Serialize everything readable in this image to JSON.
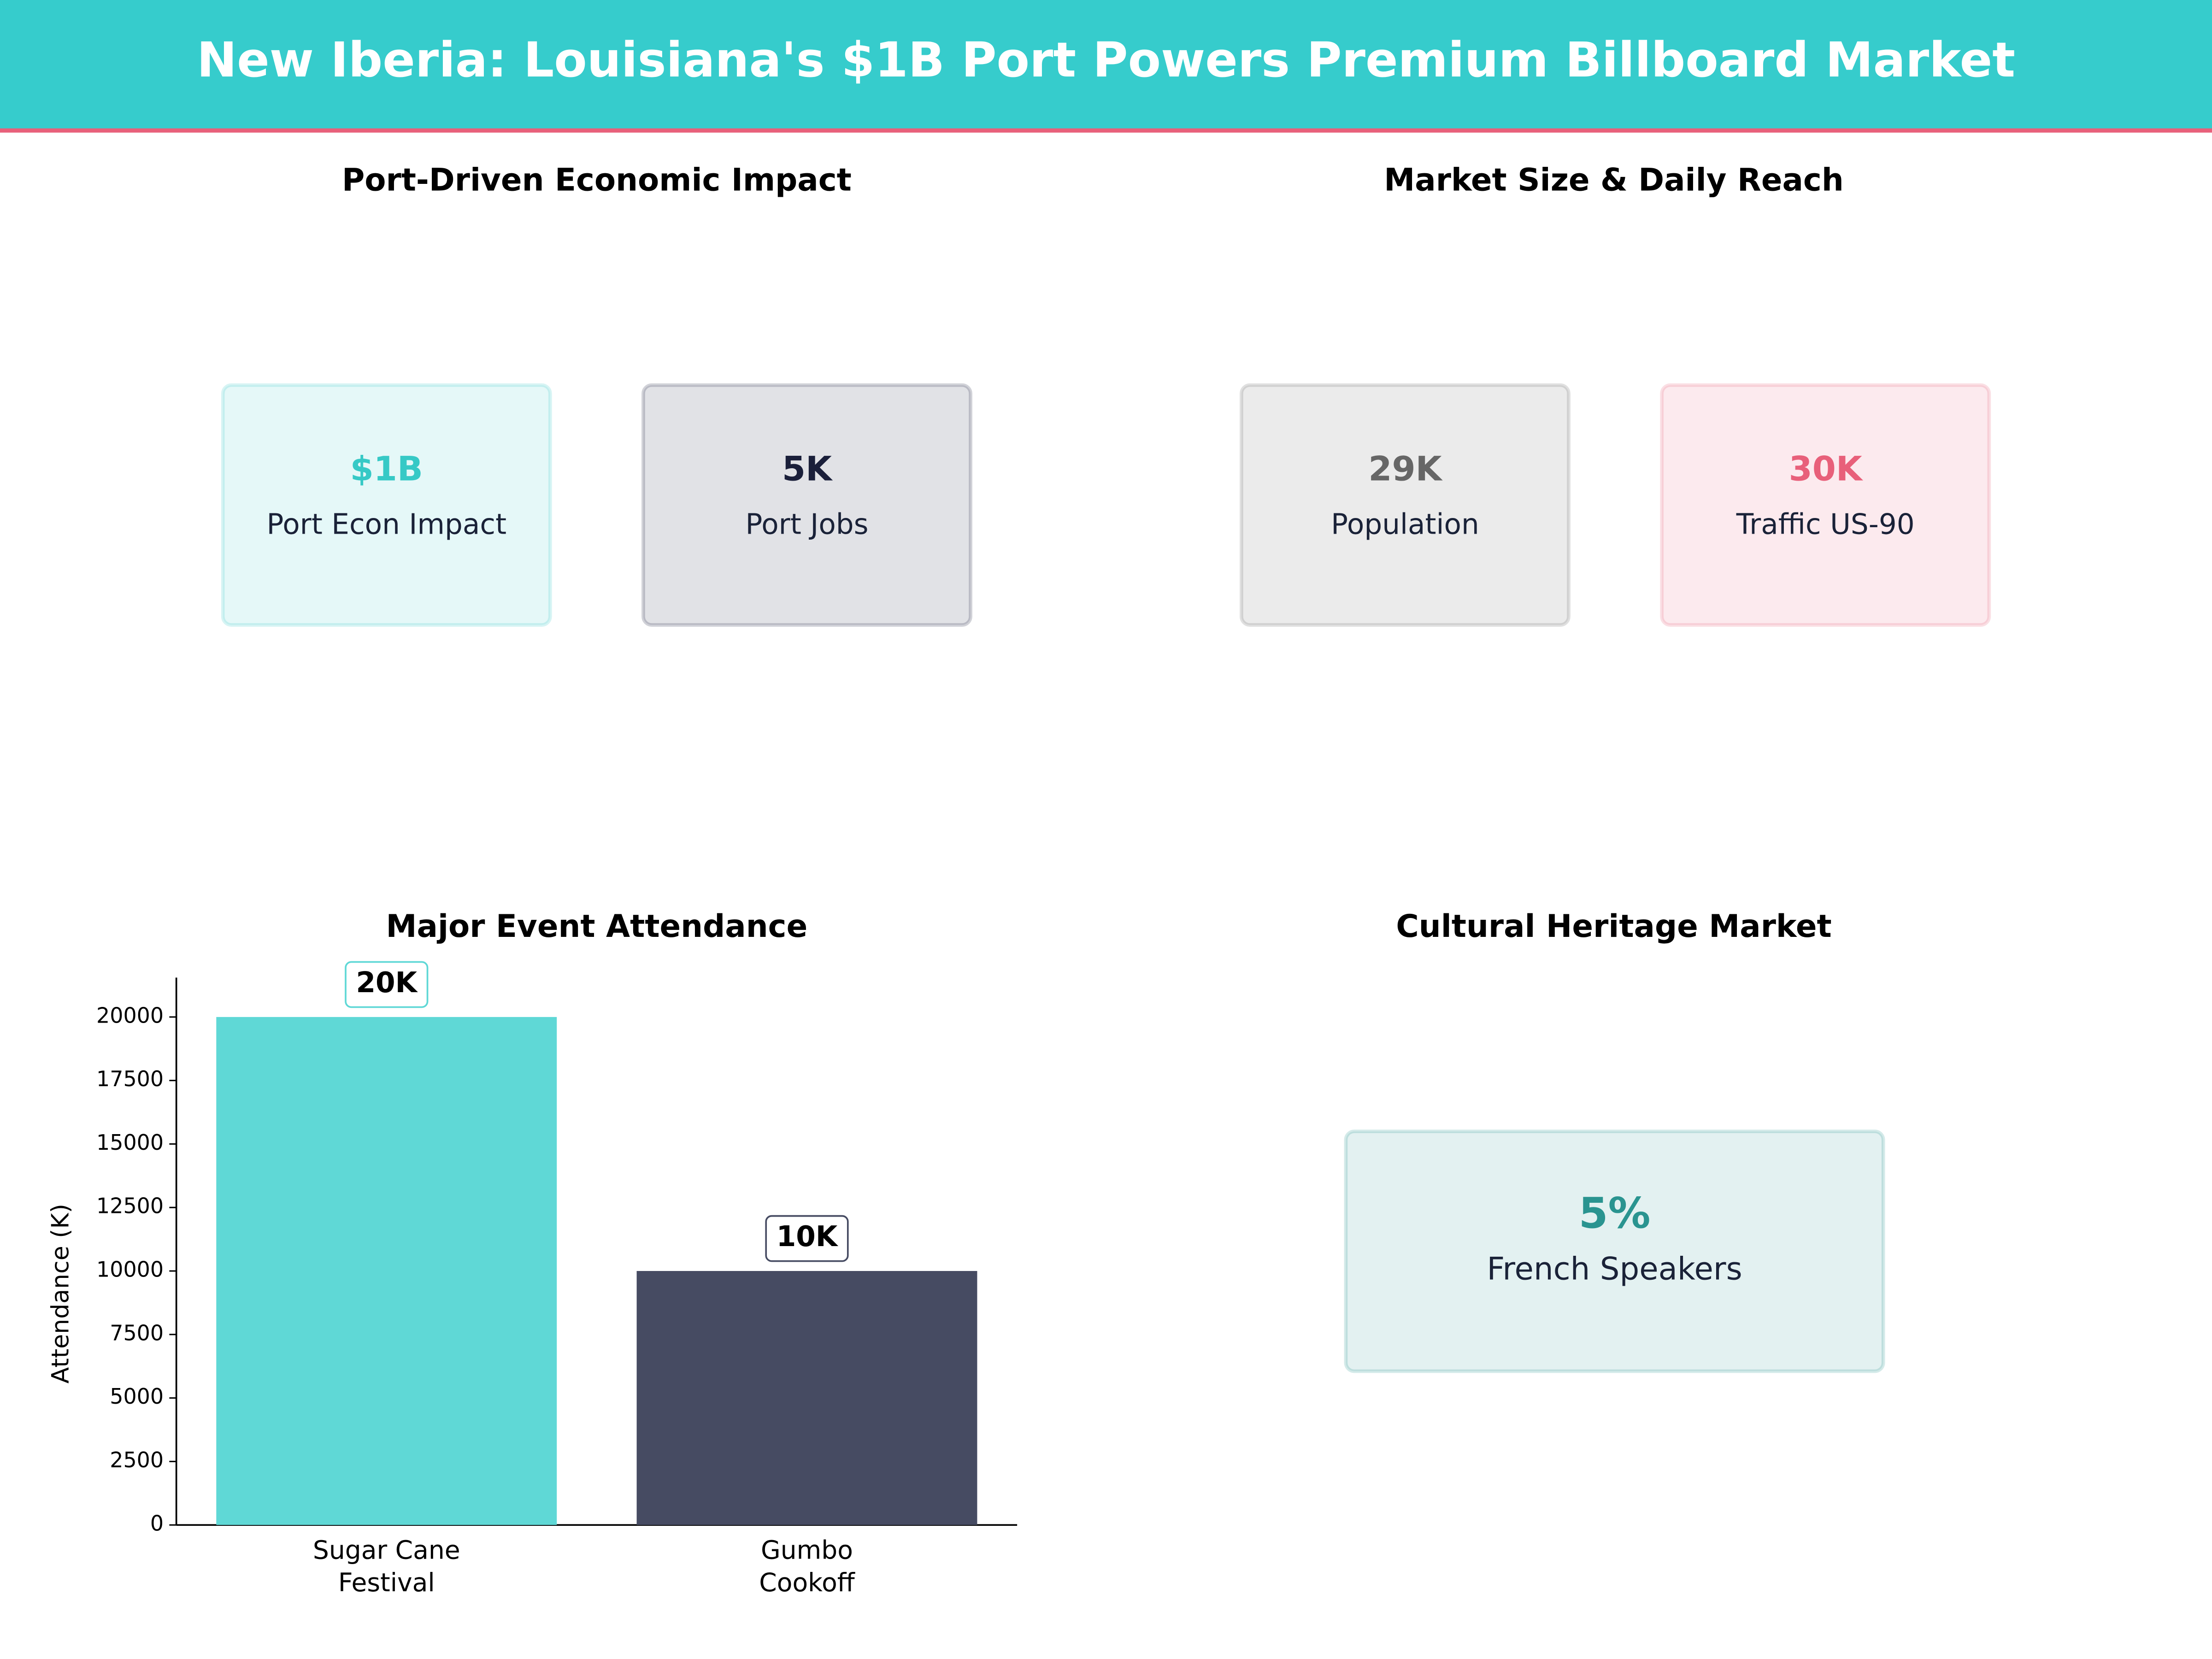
{
  "header": {
    "title": "New Iberia: Louisiana's $1B Port Powers Premium Billboard Market"
  },
  "panels": [
    {
      "title": "Port-Driven Economic Impact",
      "cards": [
        {
          "value": "$1B",
          "label": "Port Econ Impact",
          "color": "#36c9c6"
        },
        {
          "value": "5K",
          "label": "Port Jobs",
          "color": "#1a1f3a"
        }
      ]
    },
    {
      "title": "Market Size & Daily Reach",
      "cards": [
        {
          "value": "29K",
          "label": "Population",
          "color": "#666666"
        },
        {
          "value": "30K",
          "label": "Traffic US-90",
          "color": "#e8607a"
        }
      ]
    },
    {
      "title": "Cultural Heritage Market",
      "cards": [
        {
          "value": "5%",
          "label": "French Speakers",
          "color": "#2a9490"
        }
      ]
    }
  ],
  "chart_data": {
    "type": "bar",
    "title": "Major Event Attendance",
    "y_label": "Attendance (K)",
    "categories": [
      [
        "Sugar Cane",
        "Festival"
      ],
      [
        "Gumbo",
        "Cookoff"
      ]
    ],
    "values": [
      20000,
      10000
    ],
    "value_labels": [
      "20K",
      "10K"
    ],
    "colors": [
      "#5fd8d6",
      "#464b62"
    ],
    "ylim": [
      0,
      21550
    ],
    "yticks": [
      0,
      2500,
      5000,
      7500,
      10000,
      12500,
      15000,
      17500,
      20000
    ]
  }
}
